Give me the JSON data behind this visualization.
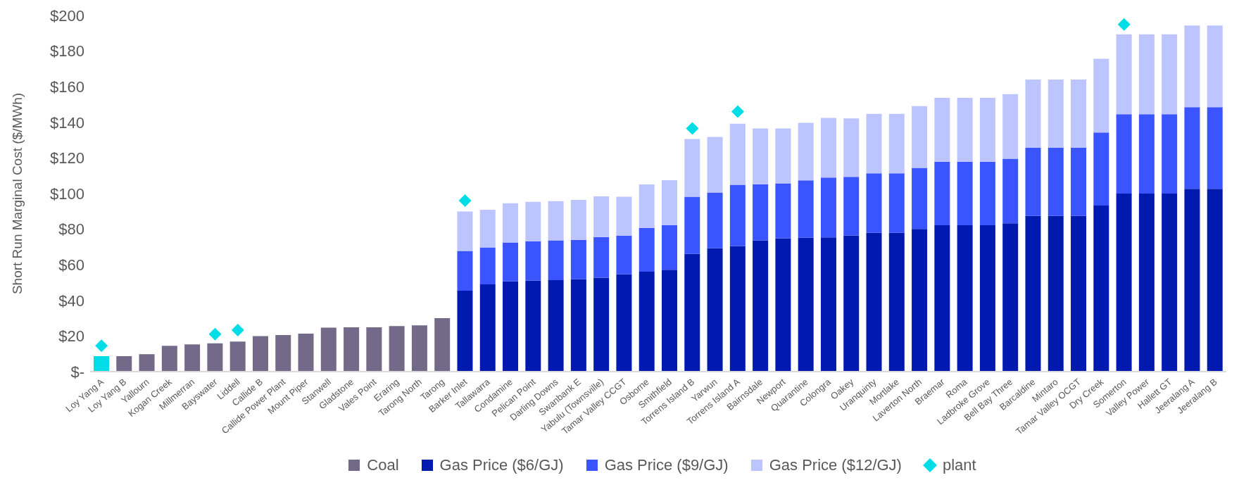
{
  "chart_data": {
    "type": "bar",
    "ylabel": "Short Run Marginal Cost ($/MWh)",
    "stacked": true,
    "legend": "bottom",
    "marker": "diamond",
    "categories": [
      "Loy Yang A",
      "Loy Yang B",
      "Yallourn",
      "Kogan Creek",
      "Millmerran",
      "Bayswater",
      "Liddell",
      "Callide B",
      "Callide Power Plant",
      "Mount Piper",
      "Stanwell",
      "Gladstone",
      "Vales Point",
      "Eraring",
      "Tarong North",
      "Tarong",
      "Barker Inlet",
      "Tallawarra",
      "Condamine",
      "Pelican Point",
      "Darling Downs",
      "Swanbank E",
      "Yabulu (Townsville)",
      "Tamar Valley CCGT",
      "Osborne",
      "Smithfield",
      "Torrens Island B",
      "Yarwun",
      "Torrens Island A",
      "Bairnsdale",
      "Newport",
      "Quarantine",
      "Colongra",
      "Oakey",
      "Uranquinty",
      "Mortlake",
      "Laverton North",
      "Braemar",
      "Roma",
      "Ladbroke Grove",
      "Bell Bay Three",
      "Barcaldine",
      "Mintaro",
      "Tamar Valley OCGT",
      "Dry Creek",
      "Somerton",
      "Valley Power",
      "Hallett GT",
      "Jeeralang A",
      "Jeeralang B"
    ],
    "ylim": [
      0,
      200
    ],
    "yticks": [
      {
        "value": 0,
        "label": "$-"
      },
      {
        "value": 20,
        "label": "$20"
      },
      {
        "value": 40,
        "label": "$40"
      },
      {
        "value": 60,
        "label": "$60"
      },
      {
        "value": 80,
        "label": "$80"
      },
      {
        "value": 100,
        "label": "$100"
      },
      {
        "value": 120,
        "label": "$120"
      },
      {
        "value": 140,
        "label": "$140"
      },
      {
        "value": 160,
        "label": "$160"
      },
      {
        "value": 180,
        "label": "$180"
      },
      {
        "value": 200,
        "label": "$200"
      }
    ],
    "series": [
      {
        "name": "Coal",
        "color": "#736a8a",
        "colors": [
          "#00dde6",
          "#736a8a",
          "#736a8a",
          "#736a8a",
          "#736a8a",
          "#736a8a",
          "#736a8a",
          "#736a8a",
          "#736a8a",
          "#736a8a",
          "#736a8a",
          "#736a8a",
          "#736a8a",
          "#736a8a",
          "#736a8a",
          "#736a8a",
          null,
          null,
          null,
          null,
          null,
          null,
          null,
          null,
          null,
          null,
          null,
          null,
          null,
          null,
          null,
          null,
          null,
          null,
          null,
          null,
          null,
          null,
          null,
          null,
          null,
          null,
          null,
          null,
          null,
          null,
          null,
          null,
          null,
          null
        ],
        "values": [
          8.7,
          8.7,
          9.8,
          14.5,
          15.3,
          15.9,
          16.9,
          20,
          20.6,
          21.3,
          24.7,
          24.9,
          24.9,
          25.6,
          26,
          30,
          null,
          null,
          null,
          null,
          null,
          null,
          null,
          null,
          null,
          null,
          null,
          null,
          null,
          null,
          null,
          null,
          null,
          null,
          null,
          null,
          null,
          null,
          null,
          null,
          null,
          null,
          null,
          null,
          null,
          null,
          null,
          null,
          null,
          null
        ]
      },
      {
        "name": "Gas Price ($6/GJ)",
        "color": "#001aaf",
        "values": [
          null,
          null,
          null,
          null,
          null,
          null,
          null,
          null,
          null,
          null,
          null,
          null,
          null,
          null,
          null,
          null,
          45.5,
          49,
          50.7,
          51.1,
          51.4,
          51.9,
          52.8,
          54.6,
          56.1,
          57.2,
          66.2,
          69.4,
          70.6,
          73.7,
          74.9,
          75.2,
          75.4,
          76.5,
          78,
          78,
          80.1,
          82.2,
          82.2,
          82.2,
          83.3,
          87.5,
          87.5,
          87.5,
          93.3,
          100,
          100,
          100,
          102.7,
          102.7
        ]
      },
      {
        "name": "Gas Price ($9/GJ)",
        "color": "#3a55ff",
        "values": [
          null,
          null,
          null,
          null,
          null,
          null,
          null,
          null,
          null,
          null,
          null,
          null,
          null,
          null,
          null,
          null,
          22.3,
          20.8,
          21.8,
          22.1,
          22.3,
          22.1,
          22.8,
          21.8,
          24.6,
          25,
          32,
          31.2,
          34.3,
          31.5,
          30.8,
          32.2,
          33.6,
          32.9,
          33.4,
          33.4,
          34.3,
          35.7,
          35.7,
          35.7,
          36.3,
          38.2,
          38.2,
          38.2,
          41,
          44.6,
          44.6,
          44.6,
          45.8,
          45.8
        ]
      },
      {
        "name": "Gas Price ($12/GJ)",
        "color": "#bcc5ff",
        "values": [
          null,
          null,
          null,
          null,
          null,
          null,
          null,
          null,
          null,
          null,
          null,
          null,
          null,
          null,
          null,
          null,
          22.1,
          21.1,
          22.1,
          22.2,
          22.1,
          22.4,
          22.8,
          21.8,
          24.4,
          25.3,
          32.4,
          31.2,
          34.3,
          31.4,
          30.9,
          32.3,
          33.5,
          32.8,
          33.4,
          33.4,
          34.7,
          35.9,
          35.9,
          35.9,
          36.2,
          38.3,
          38.3,
          38.3,
          41.4,
          44.8,
          44.8,
          44.8,
          45.9,
          45.9
        ]
      },
      {
        "name": "plant",
        "type": "scatter",
        "color": "#00dde6",
        "values": [
          14.5,
          null,
          null,
          null,
          null,
          21,
          23.3,
          null,
          null,
          null,
          null,
          null,
          null,
          null,
          null,
          null,
          96,
          null,
          null,
          null,
          null,
          null,
          null,
          null,
          null,
          null,
          136.6,
          null,
          146,
          null,
          null,
          null,
          null,
          null,
          null,
          null,
          null,
          null,
          null,
          null,
          null,
          null,
          null,
          null,
          null,
          195,
          null,
          null,
          null,
          null
        ]
      }
    ]
  }
}
